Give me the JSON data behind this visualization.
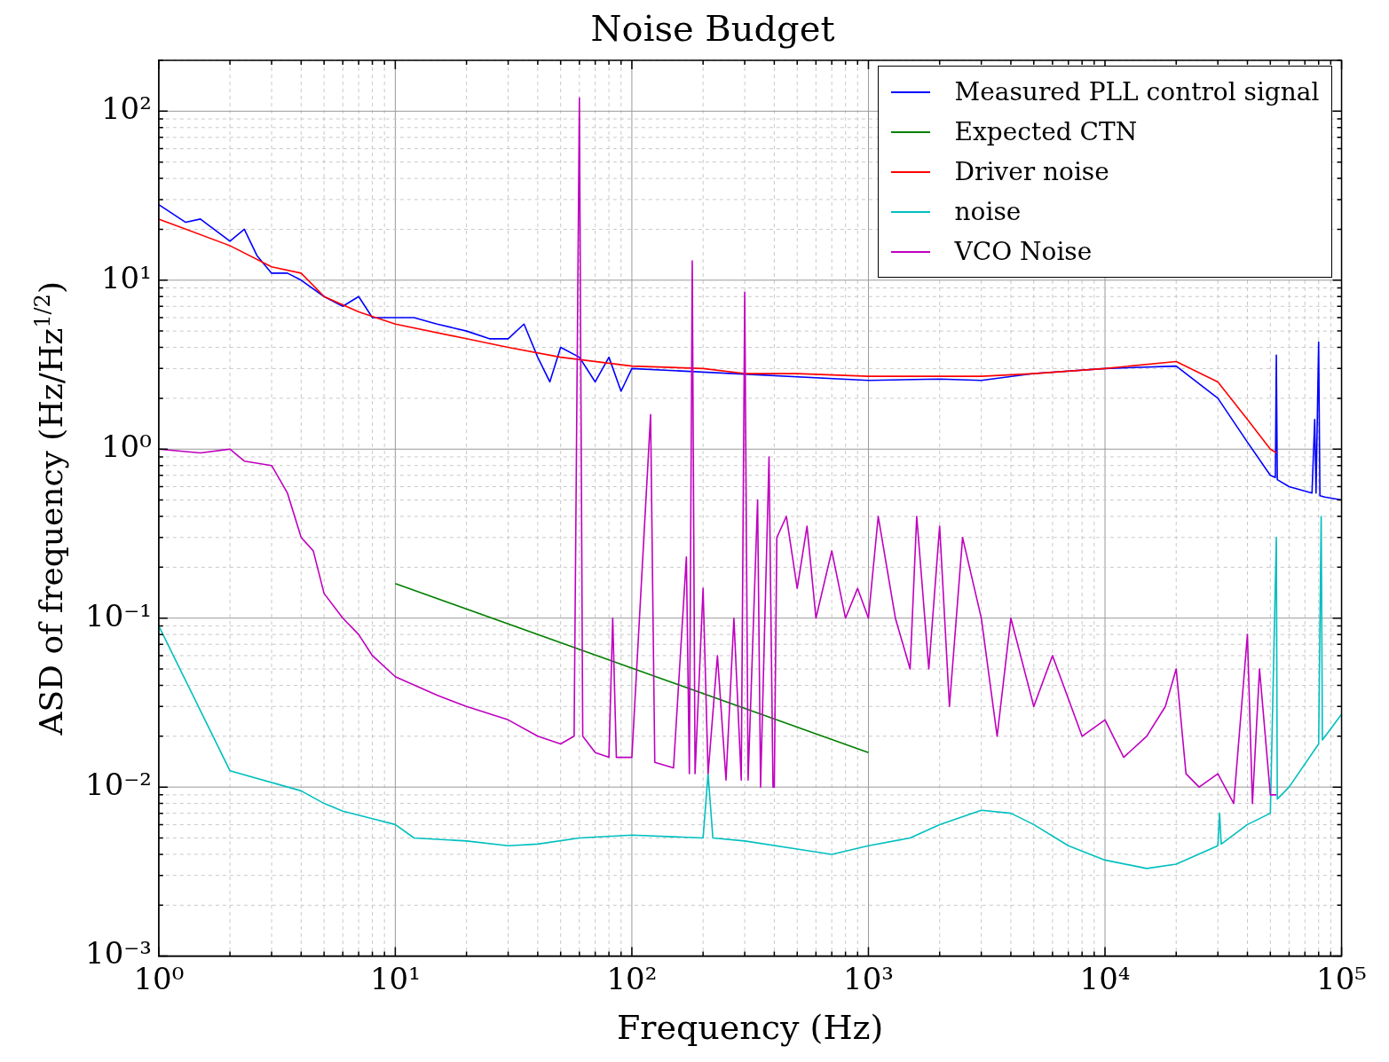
{
  "chart_data": {
    "type": "line",
    "title": "Noise Budget",
    "xlabel": "Frequency (Hz)",
    "ylabel": "ASD of frequency (Hz/Hz$^{1/2}$)",
    "log": "xy",
    "grid": true,
    "legend": "top right",
    "marker": "none",
    "line_style": "solid",
    "xlim": [
      1,
      100000
    ],
    "ylim": [
      0.001,
      200
    ],
    "xticks": [
      {
        "value": 1,
        "label": "10⁰"
      },
      {
        "value": 2,
        "label": null
      },
      {
        "value": 3,
        "label": null
      },
      {
        "value": 4,
        "label": null
      },
      {
        "value": 5,
        "label": null
      },
      {
        "value": 6,
        "label": null
      },
      {
        "value": 7,
        "label": null
      },
      {
        "value": 8,
        "label": null
      },
      {
        "value": 9,
        "label": null
      },
      {
        "value": 10,
        "label": "10¹"
      },
      {
        "value": 20,
        "label": null
      },
      {
        "value": 30,
        "label": null
      },
      {
        "value": 40,
        "label": null
      },
      {
        "value": 50,
        "label": null
      },
      {
        "value": 60,
        "label": null
      },
      {
        "value": 70,
        "label": null
      },
      {
        "value": 80,
        "label": null
      },
      {
        "value": 90,
        "label": null
      },
      {
        "value": 100,
        "label": "10²"
      },
      {
        "value": 200,
        "label": null
      },
      {
        "value": 300,
        "label": null
      },
      {
        "value": 400,
        "label": null
      },
      {
        "value": 500,
        "label": null
      },
      {
        "value": 600,
        "label": null
      },
      {
        "value": 700,
        "label": null
      },
      {
        "value": 800,
        "label": null
      },
      {
        "value": 900,
        "label": null
      },
      {
        "value": 1000,
        "label": "10³"
      },
      {
        "value": 2000,
        "label": null
      },
      {
        "value": 3000,
        "label": null
      },
      {
        "value": 4000,
        "label": null
      },
      {
        "value": 5000,
        "label": null
      },
      {
        "value": 6000,
        "label": null
      },
      {
        "value": 7000,
        "label": null
      },
      {
        "value": 8000,
        "label": null
      },
      {
        "value": 9000,
        "label": null
      },
      {
        "value": 10000,
        "label": "10⁴"
      },
      {
        "value": 20000,
        "label": null
      },
      {
        "value": 30000,
        "label": null
      },
      {
        "value": 40000,
        "label": null
      },
      {
        "value": 50000,
        "label": null
      },
      {
        "value": 60000,
        "label": null
      },
      {
        "value": 70000,
        "label": null
      },
      {
        "value": 80000,
        "label": null
      },
      {
        "value": 90000,
        "label": null
      },
      {
        "value": 100000,
        "label": "10⁵"
      }
    ],
    "yticks": [
      {
        "value": 0.001,
        "label": "10⁻³"
      },
      {
        "value": 0.002,
        "label": null
      },
      {
        "value": 0.003,
        "label": null
      },
      {
        "value": 0.004,
        "label": null
      },
      {
        "value": 0.005,
        "label": null
      },
      {
        "value": 0.006,
        "label": null
      },
      {
        "value": 0.007,
        "label": null
      },
      {
        "value": 0.008,
        "label": null
      },
      {
        "value": 0.009,
        "label": null
      },
      {
        "value": 0.01,
        "label": "10⁻²"
      },
      {
        "value": 0.02,
        "label": null
      },
      {
        "value": 0.03,
        "label": null
      },
      {
        "value": 0.04,
        "label": null
      },
      {
        "value": 0.05,
        "label": null
      },
      {
        "value": 0.06,
        "label": null
      },
      {
        "value": 0.07,
        "label": null
      },
      {
        "value": 0.08,
        "label": null
      },
      {
        "value": 0.09,
        "label": null
      },
      {
        "value": 0.1,
        "label": "10⁻¹"
      },
      {
        "value": 0.2,
        "label": null
      },
      {
        "value": 0.3,
        "label": null
      },
      {
        "value": 0.4,
        "label": null
      },
      {
        "value": 0.5,
        "label": null
      },
      {
        "value": 0.6,
        "label": null
      },
      {
        "value": 0.7,
        "label": null
      },
      {
        "value": 0.8,
        "label": null
      },
      {
        "value": 0.9,
        "label": null
      },
      {
        "value": 1,
        "label": "10⁰"
      },
      {
        "value": 2,
        "label": null
      },
      {
        "value": 3,
        "label": null
      },
      {
        "value": 4,
        "label": null
      },
      {
        "value": 5,
        "label": null
      },
      {
        "value": 6,
        "label": null
      },
      {
        "value": 7,
        "label": null
      },
      {
        "value": 8,
        "label": null
      },
      {
        "value": 9,
        "label": null
      },
      {
        "value": 10,
        "label": "10¹"
      },
      {
        "value": 20,
        "label": null
      },
      {
        "value": 30,
        "label": null
      },
      {
        "value": 40,
        "label": null
      },
      {
        "value": 50,
        "label": null
      },
      {
        "value": 60,
        "label": null
      },
      {
        "value": 70,
        "label": null
      },
      {
        "value": 80,
        "label": null
      },
      {
        "value": 90,
        "label": null
      },
      {
        "value": 100,
        "label": "10²"
      },
      {
        "value": 200,
        "label": null
      }
    ],
    "series": [
      {
        "name": "Measured PLL control signal",
        "color": "#0000ff",
        "x": [
          1,
          1.3,
          1.5,
          2,
          2.3,
          2.6,
          3,
          3.5,
          4,
          5,
          6,
          7,
          8,
          10,
          12,
          15,
          20,
          25,
          30,
          35,
          40,
          45,
          50,
          60,
          70,
          80,
          90,
          100,
          1000,
          2000,
          3000,
          5000,
          10000,
          20000,
          30000,
          40000,
          50000,
          52500,
          53000,
          53500,
          60000,
          75000,
          77000,
          78000,
          80000,
          81000,
          85000,
          100000
        ],
        "values": [
          28,
          22,
          23,
          17,
          20,
          14,
          11,
          11,
          10,
          8,
          7,
          8,
          6,
          6,
          6,
          5.5,
          5,
          4.5,
          4.5,
          5.5,
          3.5,
          2.5,
          4,
          3.5,
          2.5,
          3.5,
          2.2,
          3,
          2.55,
          2.6,
          2.55,
          2.8,
          3,
          3.1,
          2,
          1.1,
          0.7,
          0.68,
          3.6,
          0.66,
          0.6,
          0.55,
          1.5,
          0.55,
          4.3,
          0.53,
          0.52,
          0.5
        ]
      },
      {
        "name": "Expected CTN",
        "color": "#008000",
        "x": [
          10,
          1000
        ],
        "values": [
          0.16,
          0.016
        ]
      },
      {
        "name": "Driver noise",
        "color": "#ff0000",
        "x": [
          1,
          2,
          3,
          4,
          5,
          7,
          10,
          20,
          30,
          50,
          100,
          200,
          300,
          500,
          1000,
          3000,
          5000,
          10000,
          20000,
          30000,
          40000,
          50000,
          53000
        ],
        "values": [
          23,
          16,
          12,
          11,
          8,
          6.5,
          5.5,
          4.5,
          4,
          3.5,
          3.1,
          3,
          2.8,
          2.8,
          2.7,
          2.7,
          2.8,
          3,
          3.3,
          2.5,
          1.5,
          1,
          0.95
        ]
      },
      {
        "name": "noise",
        "color": "#00bfbf",
        "x": [
          1,
          2,
          4,
          5,
          6,
          8,
          10,
          12,
          20,
          30,
          40,
          60,
          100,
          200,
          210,
          220,
          300,
          500,
          700,
          1000,
          1500,
          2000,
          3000,
          4000,
          5000,
          7000,
          10000,
          15000,
          20000,
          30000,
          30500,
          31000,
          40000,
          50000,
          53000,
          53500,
          60000,
          80000,
          82000,
          83000,
          100000
        ],
        "values": [
          0.09,
          0.0125,
          0.0095,
          0.008,
          0.0072,
          0.0065,
          0.006,
          0.005,
          0.0048,
          0.0045,
          0.0046,
          0.005,
          0.0052,
          0.005,
          0.012,
          0.005,
          0.0048,
          0.0043,
          0.004,
          0.0045,
          0.005,
          0.006,
          0.0073,
          0.007,
          0.006,
          0.0045,
          0.0037,
          0.0033,
          0.0035,
          0.0045,
          0.007,
          0.0046,
          0.006,
          0.007,
          0.3,
          0.0085,
          0.01,
          0.018,
          0.4,
          0.019,
          0.027
        ]
      },
      {
        "name": "VCO Noise",
        "color": "#bf00bf",
        "x": [
          1,
          1.5,
          2,
          2.3,
          3,
          3.5,
          4,
          4.5,
          5,
          6,
          7,
          8,
          10,
          15,
          20,
          30,
          40,
          50,
          57,
          60,
          62,
          70,
          80,
          83,
          86,
          100,
          120,
          125,
          150,
          170,
          175,
          180,
          185,
          200,
          210,
          230,
          250,
          270,
          290,
          300,
          310,
          340,
          350,
          380,
          395,
          400,
          410,
          450,
          500,
          550,
          600,
          700,
          800,
          900,
          1000,
          1100,
          1300,
          1500,
          1600,
          1800,
          2000,
          2200,
          2500,
          3000,
          3500,
          4000,
          5000,
          6000,
          8000,
          10000,
          12000,
          15000,
          18000,
          20000,
          22000,
          25000,
          30000,
          35000,
          40000,
          42000,
          45000,
          50000,
          53000
        ],
        "values": [
          1,
          0.95,
          1,
          0.85,
          0.8,
          0.55,
          0.3,
          0.25,
          0.14,
          0.1,
          0.08,
          0.06,
          0.045,
          0.035,
          0.03,
          0.025,
          0.02,
          0.018,
          0.02,
          120,
          0.02,
          0.016,
          0.015,
          0.1,
          0.015,
          0.015,
          1.6,
          0.014,
          0.013,
          0.23,
          0.012,
          13,
          0.012,
          0.15,
          0.012,
          0.06,
          0.011,
          0.1,
          0.011,
          8.5,
          0.011,
          0.5,
          0.01,
          0.9,
          0.01,
          0.01,
          0.3,
          0.4,
          0.15,
          0.35,
          0.1,
          0.25,
          0.1,
          0.15,
          0.1,
          0.4,
          0.1,
          0.05,
          0.4,
          0.05,
          0.35,
          0.03,
          0.3,
          0.1,
          0.02,
          0.1,
          0.03,
          0.06,
          0.02,
          0.025,
          0.015,
          0.02,
          0.03,
          0.05,
          0.012,
          0.01,
          0.012,
          0.008,
          0.08,
          0.008,
          0.05,
          0.009,
          0.009
        ]
      }
    ]
  }
}
